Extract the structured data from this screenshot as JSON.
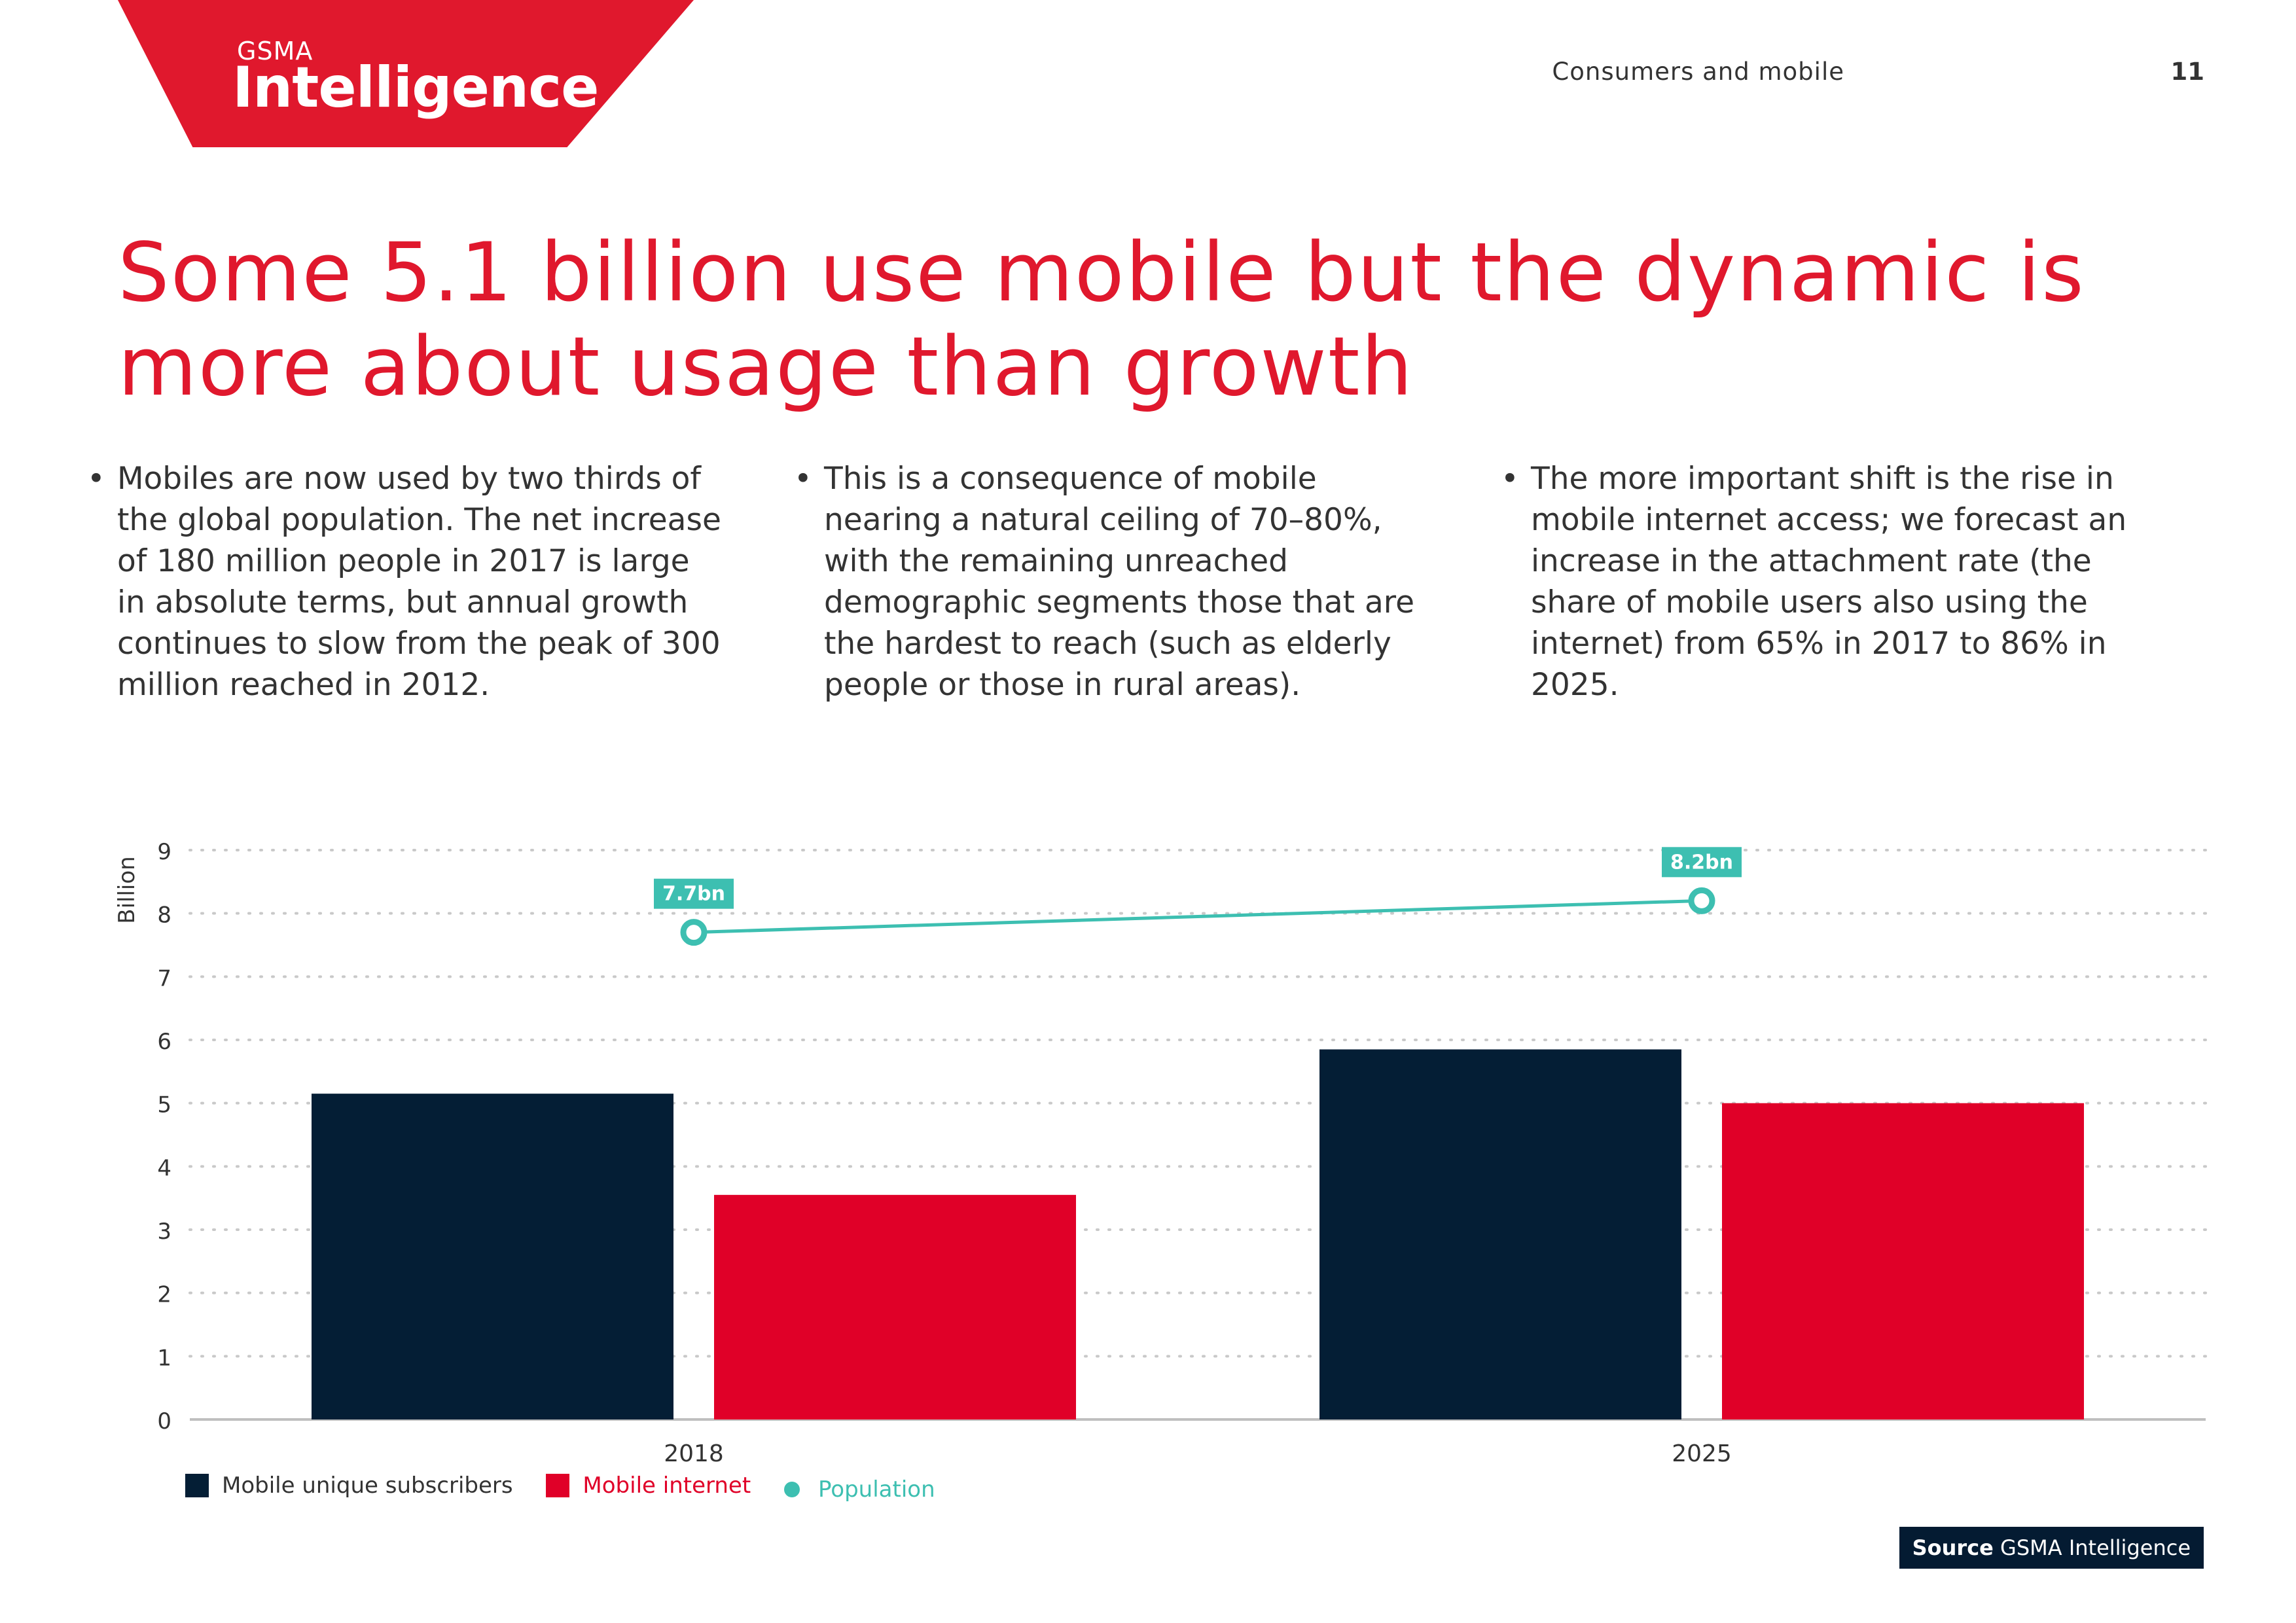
{
  "header": {
    "logo_top": "GSMA",
    "logo_main": "Intelligence",
    "section": "Consumers and mobile",
    "page_number": "11"
  },
  "headline": {
    "line1": "Some 5.1 billion use mobile but the dynamic is",
    "line2": "more about usage than growth"
  },
  "bullets": [
    {
      "lines": [
        "Mobiles are now used by two thirds of",
        "the global population. The net increase",
        "of 180 million people in 2017 is large",
        "in absolute terms, but annual growth",
        "continues to slow from the peak of 300",
        "million reached in 2012."
      ]
    },
    {
      "lines": [
        "This is a consequence of mobile",
        "nearing a natural ceiling of 70–80%,",
        "with the remaining unreached",
        "demographic segments those that are",
        "the hardest to reach (such as elderly",
        "people or those in rural areas)."
      ]
    },
    {
      "lines": [
        "The more important shift is the rise in",
        "mobile internet access; we forecast an",
        "increase in the attachment rate (the",
        "share of mobile users also using the",
        "internet) from 65% in 2017 to 86% in",
        "2025."
      ]
    }
  ],
  "colors": {
    "brand_red": "#e0182d",
    "navy": "#041e35",
    "bar_red": "#e00028",
    "teal": "#3dbfb1",
    "grid": "#c9c9c9"
  },
  "chart_data": {
    "type": "bar",
    "ylabel": "Billion",
    "ylim": [
      0,
      9
    ],
    "yticks": [
      "0",
      "1",
      "2",
      "3",
      "4",
      "5",
      "6",
      "7",
      "8",
      "9"
    ],
    "categories": [
      "2018",
      "2025"
    ],
    "series": [
      {
        "name": "Mobile unique subscribers",
        "type": "bar",
        "values": [
          5.15,
          5.85
        ]
      },
      {
        "name": "Mobile internet",
        "type": "bar",
        "values": [
          3.55,
          5.0
        ]
      },
      {
        "name": "Population",
        "type": "line",
        "values": [
          7.7,
          8.2
        ],
        "labels": [
          "7.7bn",
          "8.2bn"
        ]
      }
    ],
    "grid": "horizontal-dotted",
    "legend": "bottom-left"
  },
  "source": {
    "label": "Source",
    "text": "GSMA Intelligence"
  }
}
